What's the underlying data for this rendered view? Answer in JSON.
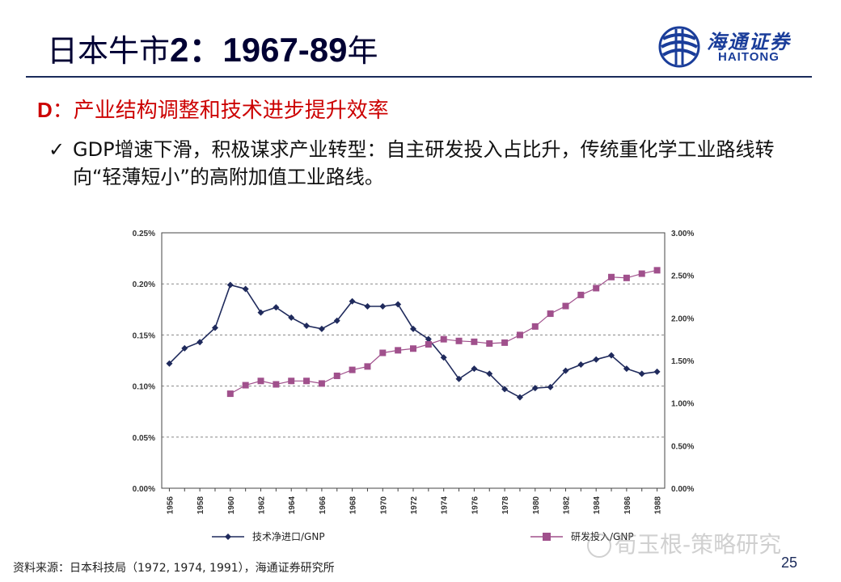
{
  "header": {
    "title_prefix": "日本牛市",
    "title_bold": "2：1967-89",
    "title_suffix": "年",
    "logo_cn": "海通证券",
    "logo_en": "HAITONG"
  },
  "subhead": {
    "letter": "D",
    "text": "：产业结构调整和技术进步提升效率"
  },
  "bullet": {
    "check": "✓",
    "text": "GDP增速下滑，积极谋求产业转型：自主研发投入占比升，传统重化学工业路线转向“轻薄短小”的高附加值工业路线。"
  },
  "chart_data": {
    "type": "line",
    "x": [
      1956,
      1957,
      1958,
      1959,
      1960,
      1961,
      1962,
      1963,
      1964,
      1965,
      1966,
      1967,
      1968,
      1969,
      1970,
      1971,
      1972,
      1973,
      1974,
      1975,
      1976,
      1977,
      1978,
      1979,
      1980,
      1981,
      1982,
      1983,
      1984,
      1985,
      1986,
      1987,
      1988
    ],
    "x_tick_labels": [
      "1956",
      "1958",
      "1960",
      "1962",
      "1964",
      "1966",
      "1968",
      "1970",
      "1972",
      "1974",
      "1976",
      "1978",
      "1980",
      "1982",
      "1984",
      "1986",
      "1988"
    ],
    "y_left_ticks": [
      "0.00%",
      "0.05%",
      "0.10%",
      "0.15%",
      "0.20%",
      "0.25%"
    ],
    "y_right_ticks": [
      "0.00%",
      "0.50%",
      "1.00%",
      "1.50%",
      "2.00%",
      "2.50%",
      "3.00%"
    ],
    "ylim_left": [
      0,
      0.25
    ],
    "ylim_right": [
      0,
      3.0
    ],
    "grid": "dashed-horizontal",
    "legend_placement": "bottom",
    "series": [
      {
        "name": "技术净进口/GNP",
        "axis": "left",
        "color": "#1f2a5c",
        "marker": "diamond",
        "values": [
          0.122,
          0.137,
          0.143,
          0.157,
          0.199,
          0.195,
          0.172,
          0.177,
          0.167,
          0.159,
          0.156,
          0.164,
          0.183,
          0.178,
          0.178,
          0.18,
          0.156,
          0.146,
          0.128,
          0.107,
          0.117,
          0.112,
          0.097,
          0.089,
          0.098,
          0.099,
          0.115,
          0.121,
          0.126,
          0.13,
          0.117,
          0.112,
          0.114
        ]
      },
      {
        "name": "研发投入/GNP",
        "axis": "right",
        "color": "#a0508c",
        "marker": "square",
        "values": [
          null,
          null,
          null,
          null,
          1.11,
          1.21,
          1.26,
          1.22,
          1.26,
          1.26,
          1.23,
          1.32,
          1.39,
          1.43,
          1.59,
          1.62,
          1.64,
          1.69,
          1.75,
          1.73,
          1.72,
          1.7,
          1.71,
          1.8,
          1.9,
          2.05,
          2.14,
          2.27,
          2.35,
          2.48,
          2.47,
          2.52,
          2.56
        ]
      }
    ]
  },
  "footer": {
    "source": "资料来源：日本科技局（1972, 1974, 1991），海通证券研究所",
    "page": "25",
    "watermark": "荀玉根-策略研究"
  }
}
